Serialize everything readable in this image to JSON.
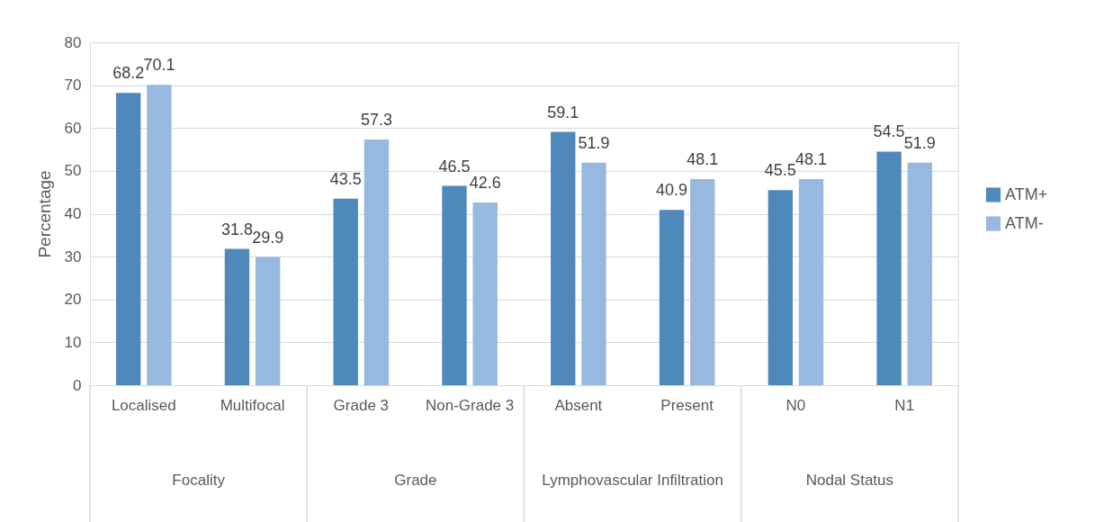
{
  "chart_data": {
    "type": "bar",
    "categories": [
      "Localised",
      "Multifocal",
      "Grade 3",
      "Non-Grade 3",
      "Absent",
      "Present",
      "N0",
      "N1"
    ],
    "series": [
      {
        "name": "ATM+",
        "color": "#4f88bb",
        "values": [
          68.2,
          31.8,
          43.5,
          46.5,
          59.1,
          40.9,
          45.5,
          54.5
        ]
      },
      {
        "name": "ATM-",
        "color": "#97b8df",
        "values": [
          70.1,
          29.9,
          57.3,
          42.6,
          51.9,
          48.1,
          48.1,
          51.9
        ]
      }
    ],
    "ylabel": "Percentage",
    "ylim": [
      0,
      80
    ],
    "yticks": [
      0,
      10,
      20,
      30,
      40,
      50,
      60,
      70,
      80
    ],
    "grid": "y",
    "legend": "right",
    "data_labels": true,
    "annotations": [
      "Focality",
      "Grade",
      "Lymphovascular Infiltration",
      "Nodal Status"
    ]
  }
}
